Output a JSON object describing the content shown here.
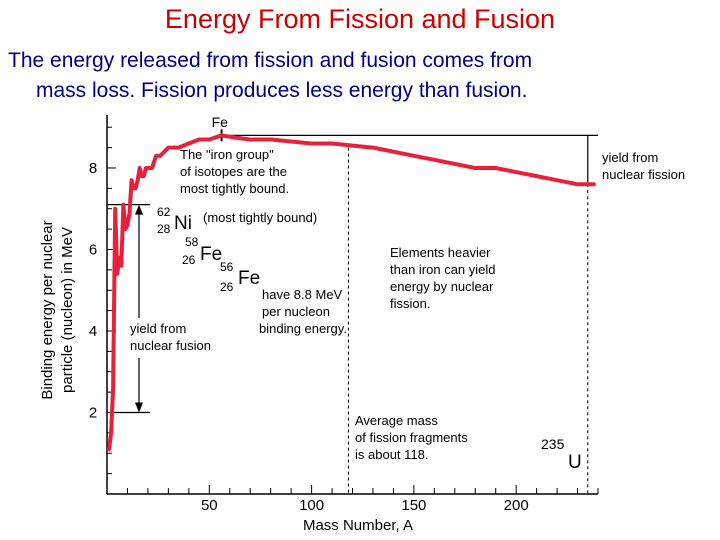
{
  "slide": {
    "title": "Energy From Fission and Fusion",
    "subtitle_line1": "The energy released from fission and fusion comes from",
    "subtitle_line2": "mass loss.   Fission produces less energy than fusion."
  },
  "colors": {
    "title": "#cc0000",
    "subtitle": "#000080",
    "curve": "#e8203a",
    "axes": "#000000"
  },
  "chart_data": {
    "type": "line",
    "xlabel": "Mass Number, A",
    "ylabel_line1": "Binding energy per nuclear",
    "ylabel_line2": "particle (nucleon) in MeV",
    "xlim": [
      0,
      240
    ],
    "ylim": [
      0,
      9.3
    ],
    "x_ticks": [
      50,
      100,
      150,
      200
    ],
    "y_ticks": [
      2,
      4,
      6,
      8
    ],
    "grid": false,
    "series": [
      {
        "x": [
          1,
          2,
          3,
          4,
          5,
          6,
          7,
          8,
          9,
          10,
          11,
          12,
          13,
          14,
          15,
          16,
          17,
          18,
          19,
          20,
          22,
          24,
          26,
          28,
          30,
          32,
          35,
          40,
          45,
          50,
          56,
          62,
          70,
          80,
          90,
          100,
          110,
          120,
          130,
          140,
          150,
          160,
          170,
          180,
          190,
          200,
          210,
          220,
          230,
          238
        ],
        "values": [
          1.1,
          1.5,
          2.6,
          7.0,
          5.4,
          5.8,
          5.6,
          7.1,
          6.5,
          6.6,
          6.9,
          7.7,
          7.5,
          7.5,
          7.7,
          8.0,
          7.8,
          7.8,
          8.0,
          8.0,
          8.0,
          8.3,
          8.3,
          8.4,
          8.5,
          8.5,
          8.5,
          8.6,
          8.7,
          8.7,
          8.8,
          8.75,
          8.7,
          8.7,
          8.65,
          8.6,
          8.6,
          8.55,
          8.5,
          8.4,
          8.3,
          8.2,
          8.1,
          8.0,
          8.0,
          7.9,
          7.8,
          7.7,
          7.6,
          7.6
        ]
      }
    ],
    "reference_lines": {
      "fe_peak_y": 8.8,
      "ni_y": 8.8,
      "fusion_low_y": 2.0,
      "fusion_high_y": 7.1,
      "fission_line_y": 8.5,
      "fission_avg_a": 118,
      "uranium_a": 235
    },
    "annotations": {
      "fe_top": "Fe",
      "iron_group_line1": "The \"iron group\"",
      "iron_group_line2": "of isotopes are the",
      "iron_group_line3": "most tightly bound.",
      "ni_mass": "62",
      "ni_z": "28",
      "ni_symbol": "Ni",
      "ni_note": "(most tightly bound)",
      "fe58_mass": "58",
      "fe58_z": "26",
      "fe58_symbol": "Fe",
      "fe56_mass": "56",
      "fe56_z": "26",
      "fe56_symbol": "Fe",
      "fe56_note_line1": "have 8.8 MeV",
      "fe56_note_line2": "per nucleon",
      "fe56_note_line3": "binding energy.",
      "fusion_line1": "yield from",
      "fusion_line2": "nuclear fusion",
      "fission_line1": "yield from",
      "fission_line2": "nuclear fission",
      "heavy_line1": "Elements heavier",
      "heavy_line2": "than iron can yield",
      "heavy_line3": "energy by nuclear",
      "heavy_line4": "fission.",
      "avg_line1": "Average mass",
      "avg_line2": "of fission fragments",
      "avg_line3": "is about 118.",
      "u_mass": "235",
      "u_symbol": "U"
    }
  }
}
